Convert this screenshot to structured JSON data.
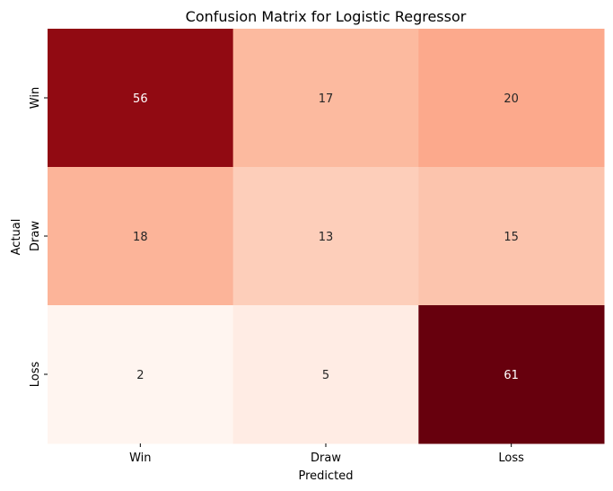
{
  "chart_data": {
    "type": "heatmap",
    "title": "Confusion Matrix for Logistic Regressor",
    "xlabel": "Predicted",
    "ylabel": "Actual",
    "x_categories": [
      "Win",
      "Draw",
      "Loss"
    ],
    "y_categories": [
      "Win",
      "Draw",
      "Loss"
    ],
    "values": [
      [
        56,
        17,
        20
      ],
      [
        18,
        13,
        15
      ],
      [
        2,
        5,
        61
      ]
    ],
    "colormap": "Reds",
    "colorbar": false,
    "value_range": [
      2,
      61
    ]
  }
}
